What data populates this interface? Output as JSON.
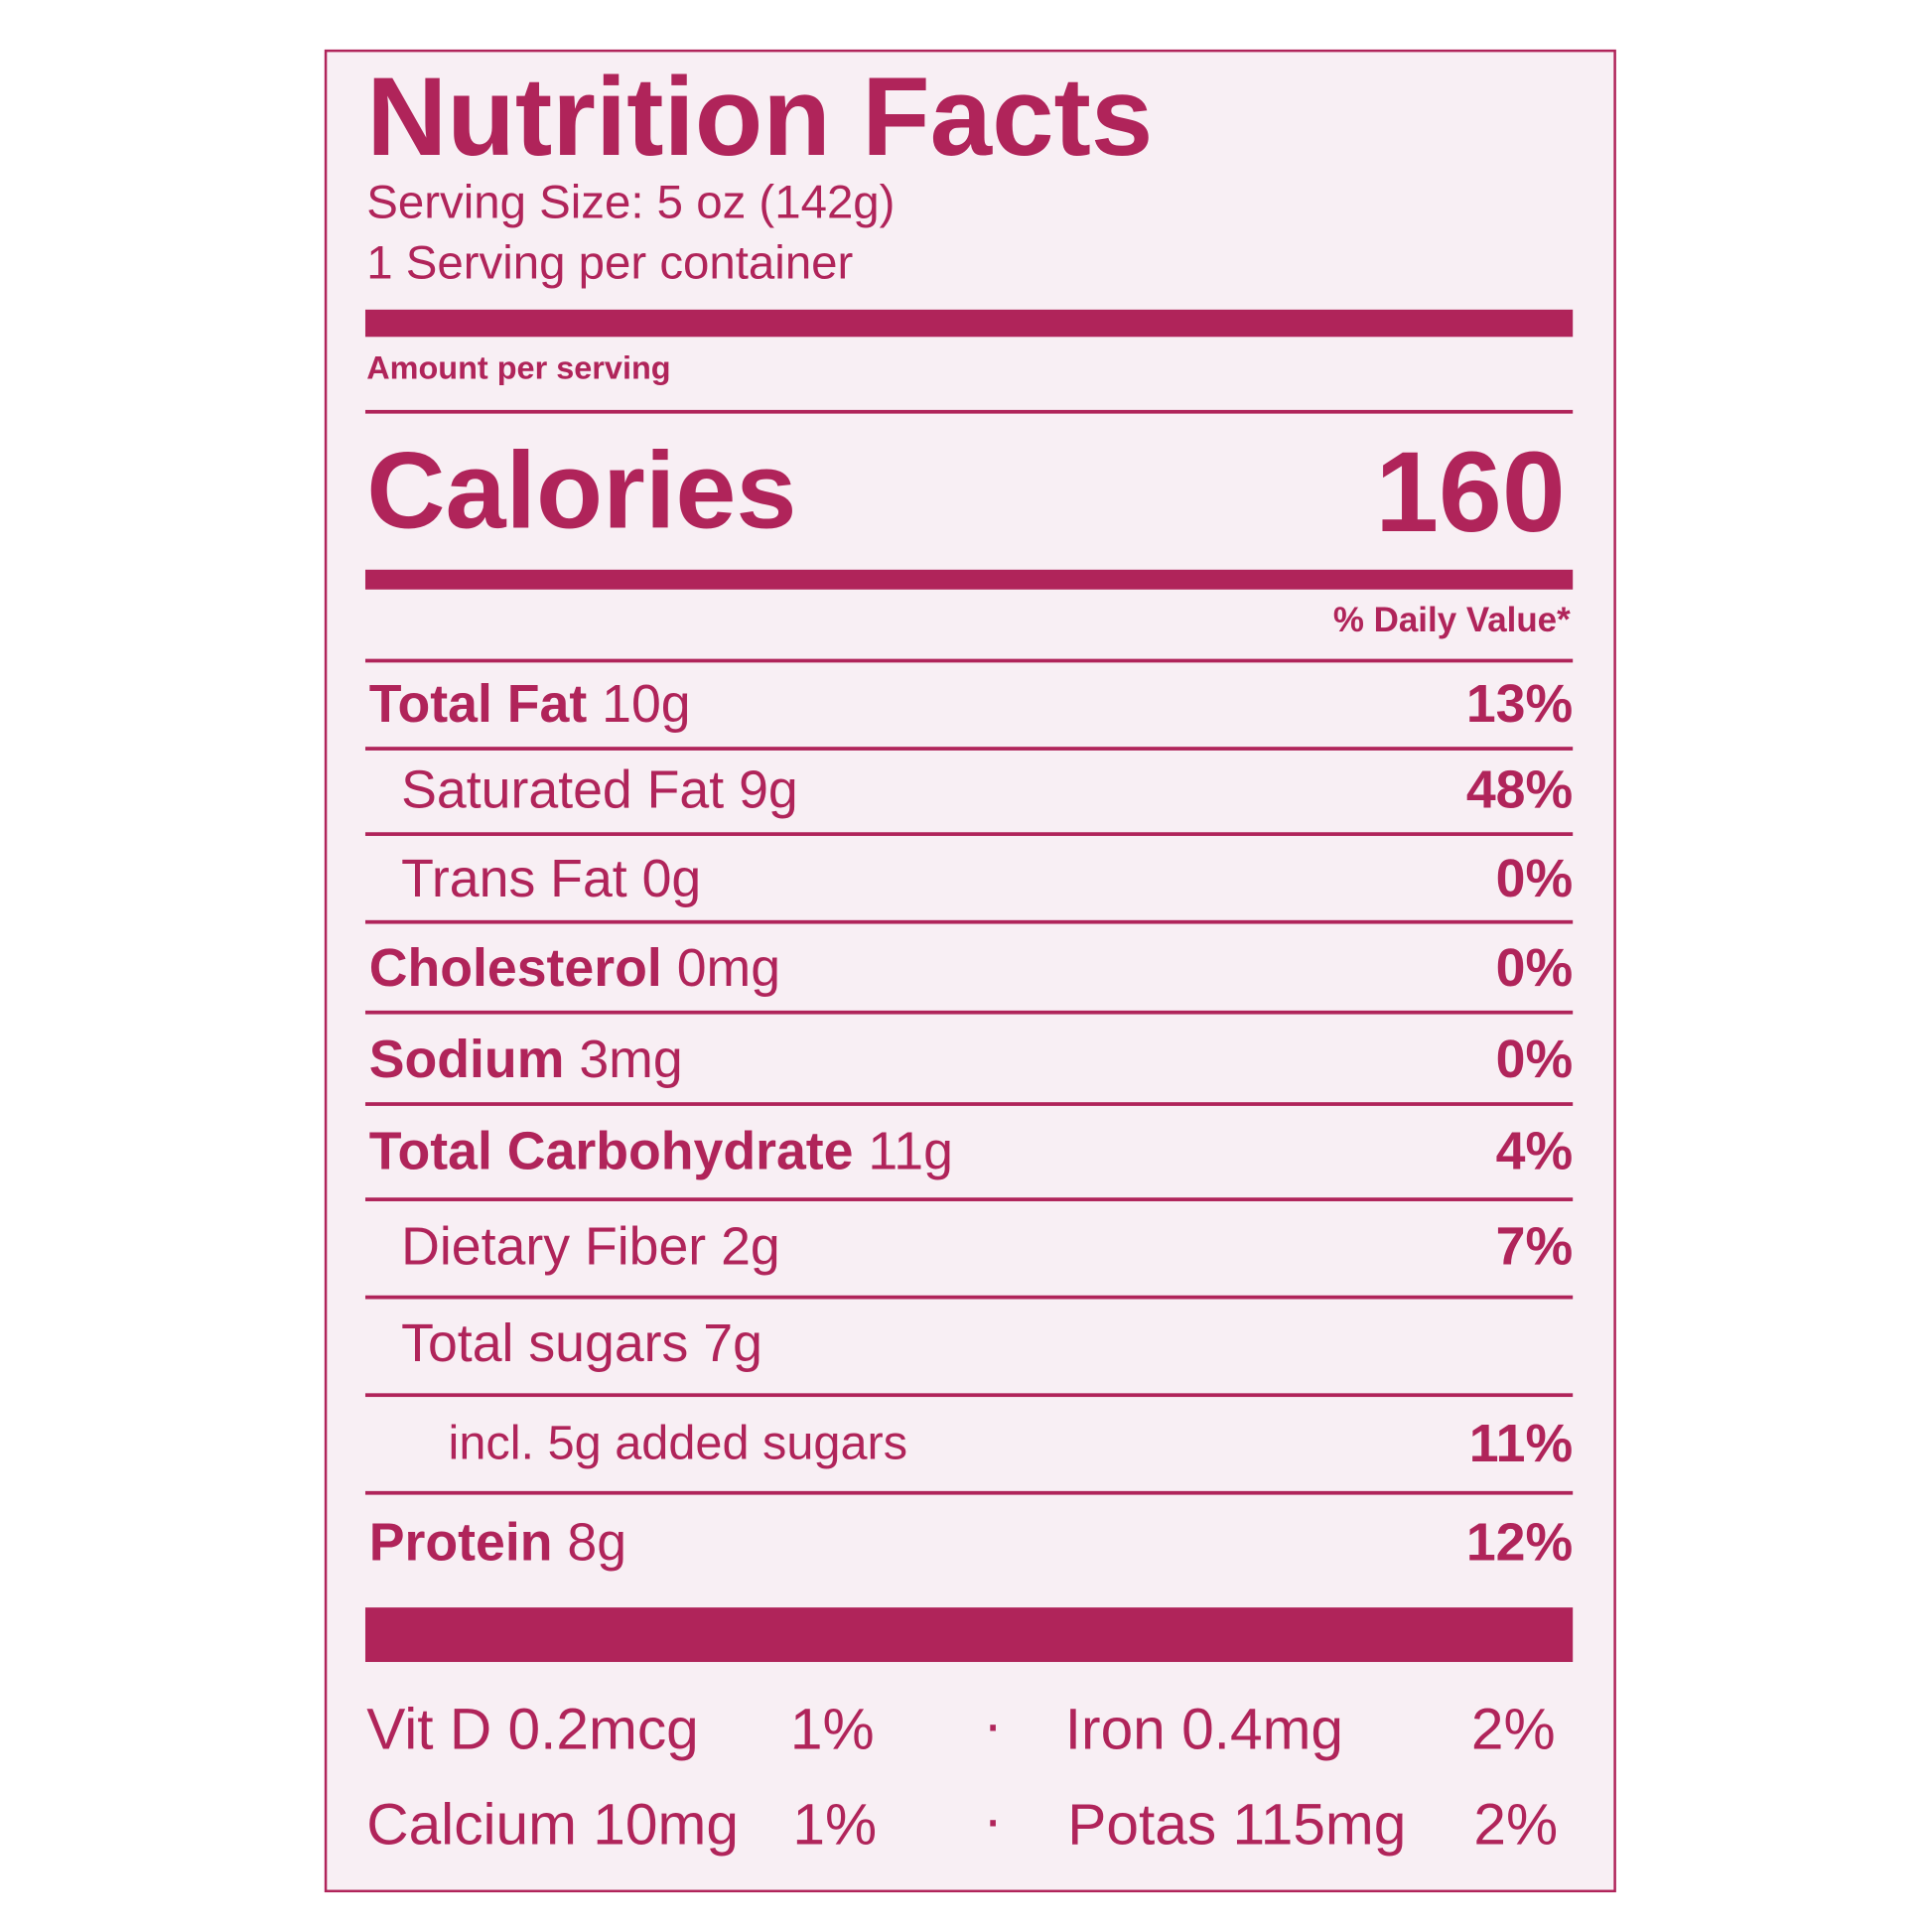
{
  "title": "Nutrition Facts",
  "serving_size": "Serving Size: 5 oz (142g)",
  "servings_per_container": "1 Serving per container",
  "amount_per_serving": "Amount per serving",
  "calories": {
    "label": "Calories",
    "value": "160"
  },
  "daily_value_header": "% Daily Value*",
  "nutrients": [
    {
      "name": "Total Fat",
      "amount": "10g",
      "dv": "13%"
    },
    {
      "name": "Saturated Fat",
      "amount": "9g",
      "dv": "48%"
    },
    {
      "name": "Trans Fat",
      "amount": "0g",
      "dv": "0%"
    },
    {
      "name": "Cholesterol",
      "amount": "0mg",
      "dv": "0%"
    },
    {
      "name": "Sodium",
      "amount": "3mg",
      "dv": "0%"
    },
    {
      "name": "Total Carbohydrate",
      "amount": "11g",
      "dv": "4%"
    },
    {
      "name": "Dietary Fiber",
      "amount": "2g",
      "dv": "7%"
    },
    {
      "name": "Total sugars",
      "amount": "7g",
      "dv": ""
    },
    {
      "name": "incl. 5g added sugars",
      "amount": "",
      "dv": "11%"
    },
    {
      "name": "Protein",
      "amount": "8g",
      "dv": "12%"
    }
  ],
  "vitamins": [
    {
      "name": "Vit D 0.2mcg",
      "dv": "1%"
    },
    {
      "name": "Iron 0.4mg",
      "dv": "2%"
    },
    {
      "name": "Calcium 10mg",
      "dv": "1%"
    },
    {
      "name": "Potas 115mg",
      "dv": "2%"
    }
  ],
  "colors": {
    "ink": "#b0245a",
    "background": "#f8eff4"
  }
}
